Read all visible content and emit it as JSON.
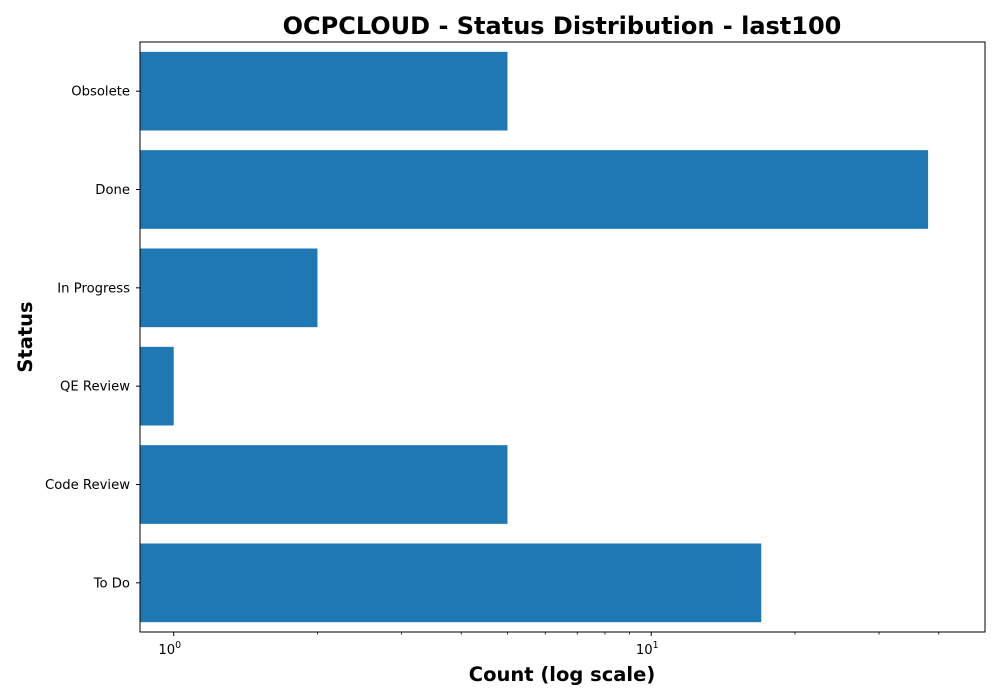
{
  "chart_data": {
    "type": "bar",
    "orientation": "horizontal",
    "title": "OCPCLOUD - Status Distribution - last100",
    "xlabel": "Count (log scale)",
    "ylabel": "Status",
    "xscale": "log",
    "xlim": [
      0.85,
      50
    ],
    "grid": false,
    "categories": [
      "Obsolete",
      "Done",
      "In Progress",
      "QE Review",
      "Code Review",
      "To Do"
    ],
    "values": [
      5,
      38,
      2,
      1,
      5,
      17
    ],
    "x_major_ticks": [
      {
        "value": 1,
        "base": "10",
        "exponent": "0"
      },
      {
        "value": 10,
        "base": "10",
        "exponent": "1"
      }
    ],
    "x_minor_ticks": [
      2,
      3,
      4,
      5,
      6,
      7,
      8,
      9,
      20,
      30,
      40
    ],
    "bar_color": "#1f77b4"
  }
}
